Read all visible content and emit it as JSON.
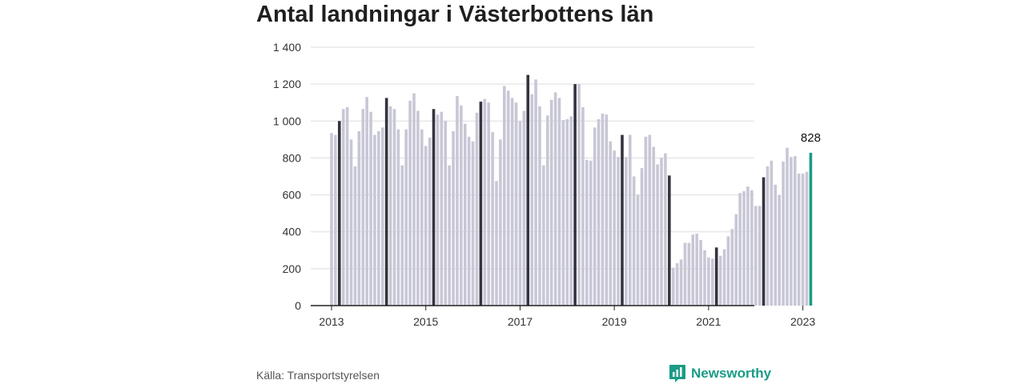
{
  "title": "Antal landningar i Västerbottens län",
  "source": "Källa: Transportstyrelsen",
  "brand": {
    "name": "Newsworthy",
    "icon": "bar-chart-badge-icon",
    "color": "#1a9c86"
  },
  "chart_data": {
    "type": "bar",
    "title": "Antal landningar i Västerbottens län",
    "xlabel": "",
    "ylabel": "",
    "ylim": [
      0,
      1400
    ],
    "yticks": [
      0,
      200,
      400,
      600,
      800,
      1000,
      1200,
      1400
    ],
    "ytick_labels": [
      "0",
      "200",
      "400",
      "600",
      "800",
      "1 000",
      "1 200",
      "1 400"
    ],
    "xtick_labels": [
      "2013",
      "2015",
      "2017",
      "2019",
      "2021",
      "2023"
    ],
    "grid": true,
    "start": "2013-01",
    "highlight_month": "March",
    "last_label": "828",
    "colors": {
      "default": "#c8c7d6",
      "march": "#34343f",
      "latest": "#1a9c86",
      "grid": "#dddddd",
      "axis": "#222222"
    },
    "values": [
      935,
      925,
      1000,
      1065,
      1075,
      900,
      755,
      945,
      1065,
      1130,
      1050,
      925,
      945,
      965,
      1125,
      1080,
      1065,
      955,
      760,
      955,
      1110,
      1150,
      1055,
      955,
      865,
      910,
      1065,
      1035,
      1050,
      1000,
      760,
      945,
      1135,
      1085,
      985,
      915,
      890,
      1045,
      1105,
      1120,
      1100,
      940,
      675,
      900,
      1190,
      1165,
      1125,
      1100,
      1000,
      1055,
      1250,
      1145,
      1225,
      1080,
      760,
      1030,
      1115,
      1155,
      1125,
      1005,
      1010,
      1025,
      1200,
      1200,
      1075,
      790,
      785,
      965,
      1010,
      1040,
      1035,
      890,
      840,
      805,
      925,
      805,
      925,
      700,
      600,
      745,
      915,
      925,
      860,
      765,
      800,
      825,
      705,
      205,
      230,
      250,
      340,
      340,
      385,
      390,
      355,
      300,
      260,
      255,
      315,
      270,
      305,
      375,
      415,
      495,
      610,
      620,
      645,
      625,
      540,
      540,
      695,
      755,
      785,
      655,
      600,
      780,
      855,
      805,
      810,
      715,
      715,
      725,
      828
    ]
  }
}
